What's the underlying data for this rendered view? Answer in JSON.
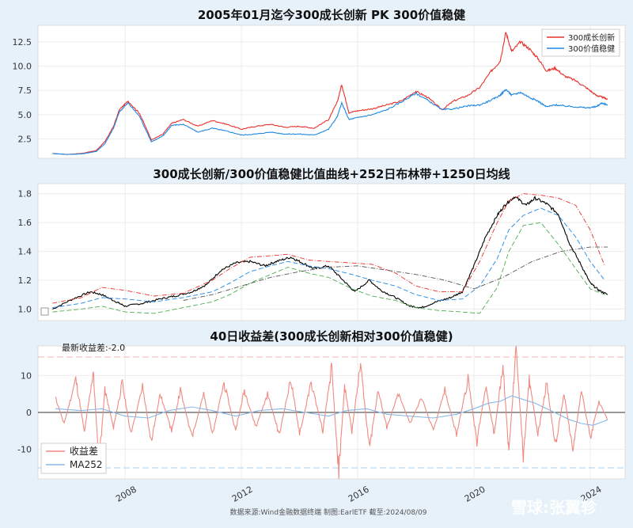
{
  "chart_data": [
    {
      "type": "line",
      "title": "2005年01月迄今300成长创新 PK 300价值稳健",
      "ylim": [
        0.5,
        14.2
      ],
      "yticks": [
        2.5,
        5.0,
        7.5,
        10.0,
        12.5
      ],
      "ytick_labels": [
        "2.5",
        "5.0",
        "7.5",
        "10.0",
        "12.5"
      ],
      "legend": {
        "position": "top-right"
      },
      "grid": true,
      "series": [
        {
          "name": "300成长创新",
          "color": "#e8302a",
          "x": [
            2005.5,
            2006.0,
            2006.5,
            2007.0,
            2007.3,
            2007.6,
            2007.8,
            2008.1,
            2008.5,
            2008.9,
            2009.3,
            2009.6,
            2010.0,
            2010.5,
            2011.0,
            2011.5,
            2012.0,
            2012.5,
            2013.0,
            2013.5,
            2014.0,
            2014.5,
            2015.0,
            2015.3,
            2015.45,
            2015.7,
            2016.0,
            2016.5,
            2017.0,
            2017.5,
            2018.0,
            2018.4,
            2018.9,
            2019.3,
            2019.8,
            2020.2,
            2020.6,
            2020.9,
            2021.1,
            2021.3,
            2021.6,
            2021.9,
            2022.2,
            2022.5,
            2022.8,
            2023.1,
            2023.5,
            2023.9,
            2024.2,
            2024.4,
            2024.6
          ],
          "y": [
            1.0,
            0.9,
            1.0,
            1.3,
            2.2,
            3.8,
            5.5,
            6.4,
            5.1,
            2.4,
            3.0,
            4.1,
            4.5,
            3.8,
            4.4,
            4.0,
            3.5,
            3.8,
            4.0,
            3.7,
            3.8,
            3.6,
            4.5,
            6.3,
            8.1,
            5.2,
            5.4,
            5.6,
            6.0,
            6.4,
            7.4,
            6.8,
            5.5,
            6.4,
            7.0,
            7.8,
            9.5,
            10.5,
            13.5,
            11.5,
            12.5,
            11.8,
            10.8,
            9.5,
            9.8,
            9.0,
            8.5,
            7.7,
            7.0,
            6.8,
            6.6
          ]
        },
        {
          "name": "300价值稳健",
          "color": "#1e88e5",
          "x": [
            2005.5,
            2006.0,
            2006.5,
            2007.0,
            2007.3,
            2007.6,
            2007.8,
            2008.1,
            2008.5,
            2008.9,
            2009.3,
            2009.6,
            2010.0,
            2010.5,
            2011.0,
            2011.5,
            2012.0,
            2012.5,
            2013.0,
            2013.5,
            2014.0,
            2014.5,
            2015.0,
            2015.3,
            2015.45,
            2015.7,
            2016.0,
            2016.5,
            2017.0,
            2017.5,
            2018.0,
            2018.4,
            2018.9,
            2019.3,
            2019.8,
            2020.2,
            2020.6,
            2020.9,
            2021.1,
            2021.3,
            2021.6,
            2021.9,
            2022.2,
            2022.5,
            2022.8,
            2023.1,
            2023.5,
            2023.9,
            2024.2,
            2024.4,
            2024.6
          ],
          "y": [
            1.0,
            0.9,
            0.95,
            1.2,
            2.0,
            3.6,
            5.3,
            6.2,
            4.8,
            2.2,
            2.8,
            3.9,
            4.0,
            3.2,
            3.6,
            3.3,
            2.9,
            3.0,
            3.2,
            3.0,
            3.0,
            2.9,
            3.5,
            4.8,
            6.2,
            4.5,
            4.7,
            5.0,
            5.5,
            6.3,
            7.2,
            6.5,
            5.5,
            5.6,
            5.9,
            6.0,
            6.5,
            7.0,
            7.6,
            7.0,
            7.3,
            6.8,
            6.4,
            5.8,
            6.0,
            5.9,
            5.8,
            5.7,
            5.8,
            6.2,
            6.0
          ]
        }
      ]
    },
    {
      "type": "line",
      "title": "300成长创新/300价值稳健比值曲线+252日布林带+1250日均线",
      "ylim": [
        0.92,
        1.87
      ],
      "yticks": [
        1.0,
        1.2,
        1.4,
        1.6,
        1.8
      ],
      "ytick_labels": [
        "1.0",
        "1.2",
        "1.4",
        "1.6",
        "1.8"
      ],
      "grid": true,
      "series": [
        {
          "color": "#000000",
          "style": "solid",
          "x": [
            2005.5,
            2006.2,
            2006.8,
            2007.2,
            2007.7,
            2008.0,
            2008.6,
            2009.2,
            2009.7,
            2010.3,
            2010.8,
            2011.3,
            2011.8,
            2012.3,
            2012.8,
            2013.2,
            2013.7,
            2014.1,
            2014.5,
            2015.0,
            2015.5,
            2015.9,
            2016.4,
            2016.8,
            2017.3,
            2017.8,
            2018.2,
            2018.7,
            2019.2,
            2019.6,
            2020.0,
            2020.4,
            2020.8,
            2021.1,
            2021.4,
            2021.8,
            2022.1,
            2022.5,
            2022.9,
            2023.3,
            2023.7,
            2024.0,
            2024.3,
            2024.6
          ],
          "y": [
            1.0,
            1.07,
            1.12,
            1.1,
            1.05,
            1.02,
            1.04,
            1.07,
            1.09,
            1.12,
            1.17,
            1.27,
            1.32,
            1.33,
            1.3,
            1.33,
            1.36,
            1.32,
            1.28,
            1.3,
            1.2,
            1.12,
            1.2,
            1.13,
            1.08,
            1.02,
            1.01,
            1.05,
            1.08,
            1.12,
            1.3,
            1.5,
            1.65,
            1.73,
            1.78,
            1.72,
            1.77,
            1.73,
            1.66,
            1.45,
            1.3,
            1.18,
            1.13,
            1.1
          ]
        },
        {
          "color": "#e8302a",
          "style": "dashdot",
          "x": [
            2005.5,
            2006.5,
            2007.2,
            2008.0,
            2009.0,
            2010.0,
            2011.0,
            2011.6,
            2012.3,
            2013.0,
            2013.6,
            2014.3,
            2015.0,
            2015.8,
            2016.5,
            2017.3,
            2018.0,
            2018.8,
            2019.6,
            2020.2,
            2020.8,
            2021.2,
            2021.7,
            2022.3,
            2022.9,
            2023.5,
            2024.0,
            2024.5
          ],
          "y": [
            1.04,
            1.08,
            1.15,
            1.13,
            1.09,
            1.11,
            1.2,
            1.28,
            1.36,
            1.37,
            1.38,
            1.34,
            1.33,
            1.32,
            1.31,
            1.25,
            1.16,
            1.12,
            1.12,
            1.33,
            1.6,
            1.75,
            1.8,
            1.79,
            1.77,
            1.72,
            1.55,
            1.3
          ]
        },
        {
          "color": "#1e88e5",
          "style": "dashed",
          "x": [
            2005.5,
            2006.5,
            2007.2,
            2008.0,
            2009.0,
            2010.0,
            2011.0,
            2011.6,
            2012.3,
            2013.0,
            2013.6,
            2014.3,
            2015.0,
            2015.8,
            2016.5,
            2017.3,
            2018.0,
            2018.8,
            2019.6,
            2020.2,
            2020.8,
            2021.2,
            2021.7,
            2022.3,
            2022.9,
            2023.5,
            2024.0,
            2024.5
          ],
          "y": [
            1.01,
            1.04,
            1.08,
            1.07,
            1.05,
            1.08,
            1.12,
            1.18,
            1.26,
            1.3,
            1.33,
            1.3,
            1.28,
            1.24,
            1.2,
            1.16,
            1.1,
            1.06,
            1.07,
            1.16,
            1.35,
            1.55,
            1.65,
            1.7,
            1.65,
            1.5,
            1.33,
            1.2
          ]
        },
        {
          "color": "#4caf50",
          "style": "dashed",
          "x": [
            2005.5,
            2006.5,
            2007.2,
            2008.0,
            2009.0,
            2010.0,
            2011.0,
            2011.6,
            2012.3,
            2013.0,
            2013.6,
            2014.3,
            2015.0,
            2015.8,
            2016.5,
            2017.3,
            2018.0,
            2018.8,
            2019.6,
            2020.2,
            2020.8,
            2021.2,
            2021.7,
            2022.3,
            2022.9,
            2023.5,
            2024.0,
            2024.5
          ],
          "y": [
            0.98,
            1.0,
            1.02,
            0.98,
            0.97,
            1.01,
            1.05,
            1.1,
            1.18,
            1.24,
            1.29,
            1.25,
            1.22,
            1.14,
            1.09,
            1.06,
            1.01,
            0.99,
            0.98,
            0.97,
            1.15,
            1.4,
            1.58,
            1.6,
            1.45,
            1.28,
            1.14,
            1.1
          ]
        },
        {
          "color": "#555555",
          "style": "dashdot",
          "x": [
            2010.0,
            2011.0,
            2012.0,
            2013.0,
            2014.0,
            2015.0,
            2016.0,
            2017.0,
            2018.0,
            2019.0,
            2020.0,
            2021.0,
            2022.0,
            2023.0,
            2024.0,
            2024.6
          ],
          "y": [
            1.06,
            1.1,
            1.16,
            1.22,
            1.26,
            1.29,
            1.3,
            1.27,
            1.24,
            1.2,
            1.14,
            1.22,
            1.33,
            1.4,
            1.43,
            1.43
          ]
        }
      ]
    },
    {
      "type": "line",
      "title": "40日收益差(300成长创新相对300价值稳健)",
      "annotation": "最新收益差:-2.0",
      "ylim": [
        -18,
        18
      ],
      "yticks": [
        -10,
        0,
        10
      ],
      "ytick_labels": [
        "-10",
        "0",
        "10"
      ],
      "hlines": [
        15,
        -15
      ],
      "legend": {
        "position": "bottom-left"
      },
      "grid": true,
      "xticks": [
        2008,
        2012,
        2016,
        2020,
        2024
      ],
      "xtick_labels": [
        "2008",
        "2012",
        "2016",
        "2020",
        "2024"
      ],
      "series": [
        {
          "name": "收益差",
          "color": "#f08a80",
          "x": [
            2005.6,
            2005.9,
            2006.3,
            2006.6,
            2006.9,
            2007.1,
            2007.3,
            2007.6,
            2007.9,
            2008.2,
            2008.6,
            2008.9,
            2009.2,
            2009.6,
            2009.9,
            2010.3,
            2010.7,
            2011.0,
            2011.4,
            2011.8,
            2012.1,
            2012.5,
            2012.9,
            2013.3,
            2013.7,
            2014.0,
            2014.4,
            2014.8,
            2015.1,
            2015.35,
            2015.55,
            2015.8,
            2016.1,
            2016.4,
            2016.7,
            2017.0,
            2017.4,
            2017.8,
            2018.2,
            2018.6,
            2019.0,
            2019.4,
            2019.8,
            2020.1,
            2020.4,
            2020.7,
            2021.0,
            2021.2,
            2021.45,
            2021.7,
            2021.9,
            2022.2,
            2022.5,
            2022.8,
            2023.1,
            2023.4,
            2023.7,
            2024.0,
            2024.3,
            2024.6
          ],
          "y": [
            4,
            -3,
            9,
            -5,
            11,
            -14,
            6,
            -4,
            8,
            -6,
            7,
            -8,
            5,
            -5,
            6,
            -7,
            5,
            -6,
            8,
            -5,
            6,
            -4,
            5,
            -6,
            9,
            -6,
            8,
            -5,
            12,
            -16,
            7,
            -5,
            13,
            -10,
            6,
            -4,
            5,
            -3,
            4,
            -5,
            6,
            -6,
            9,
            -8,
            7,
            -6,
            13,
            -11,
            17,
            -12,
            9,
            -6,
            8,
            -9,
            5,
            -10,
            6,
            -7,
            3,
            -2
          ]
        },
        {
          "name": "MA252",
          "color": "#8ab8e6",
          "x": [
            2005.6,
            2006.5,
            2007.2,
            2008.0,
            2008.8,
            2009.5,
            2010.3,
            2011.0,
            2011.8,
            2012.6,
            2013.4,
            2014.2,
            2015.0,
            2015.6,
            2016.3,
            2017.0,
            2017.8,
            2018.6,
            2019.4,
            2020.0,
            2020.5,
            2020.9,
            2021.3,
            2021.7,
            2022.1,
            2022.5,
            2022.9,
            2023.3,
            2023.7,
            2024.1,
            2024.6
          ],
          "y": [
            1,
            0.5,
            1,
            -1,
            -1.5,
            0.5,
            1.5,
            0.5,
            -1,
            0.5,
            1,
            0,
            -1,
            0.5,
            1,
            -0.5,
            -1,
            -1.5,
            -0.5,
            1,
            2.5,
            3,
            4.5,
            3.5,
            2.5,
            1,
            -0.5,
            -2,
            -3,
            -3.5,
            -2
          ]
        }
      ]
    }
  ],
  "footer": "数据来源:Wind金融数据终端  制图:EarlETF 截至:2024/08/09",
  "watermark": "雪球:张翼轸",
  "colors": {
    "background": "#e7f1fa",
    "panel": "#ffffff",
    "grid": "#e6e6e6"
  }
}
